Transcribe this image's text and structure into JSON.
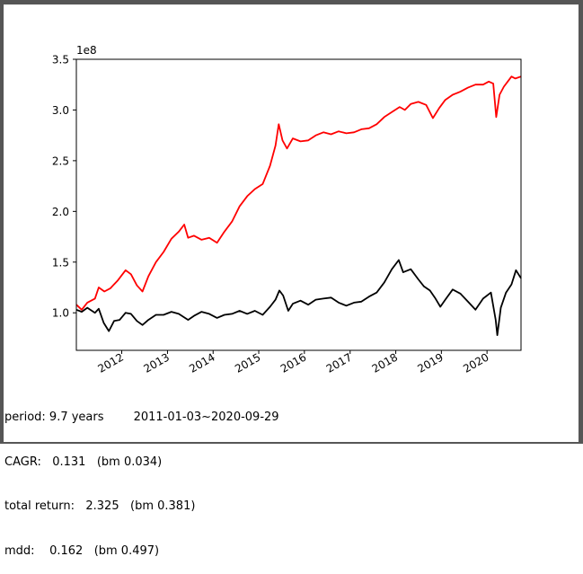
{
  "chart_data": {
    "type": "line",
    "title": "",
    "xlabel": "",
    "ylabel": "",
    "y_offset_label": "1e8",
    "xlim": [
      "2011-01-03",
      "2020-09-29"
    ],
    "ylim": [
      0.63,
      3.5
    ],
    "y_ticks": [
      1.0,
      1.5,
      2.0,
      2.5,
      3.0,
      3.5
    ],
    "y_tick_labels": [
      "1.0",
      "1.5",
      "2.0",
      "2.5",
      "3.0",
      "3.5"
    ],
    "x_ticks": [
      "2012-01-01",
      "2013-01-01",
      "2014-01-01",
      "2015-01-01",
      "2016-01-01",
      "2017-01-01",
      "2018-01-01",
      "2019-01-01",
      "2020-01-01"
    ],
    "x_tick_labels": [
      "2012",
      "2013",
      "2014",
      "2015",
      "2016",
      "2017",
      "2018",
      "2019",
      "2020"
    ],
    "grid": false,
    "legend": false,
    "series": [
      {
        "color": "#ff0000",
        "points": [
          [
            "2011-01-03",
            1.08
          ],
          [
            "2011-02-15",
            1.03
          ],
          [
            "2011-04-01",
            1.1
          ],
          [
            "2011-06-01",
            1.14
          ],
          [
            "2011-07-01",
            1.25
          ],
          [
            "2011-08-15",
            1.21
          ],
          [
            "2011-10-01",
            1.24
          ],
          [
            "2011-12-01",
            1.32
          ],
          [
            "2012-02-01",
            1.42
          ],
          [
            "2012-03-15",
            1.38
          ],
          [
            "2012-05-01",
            1.27
          ],
          [
            "2012-06-15",
            1.21
          ],
          [
            "2012-08-01",
            1.36
          ],
          [
            "2012-10-01",
            1.5
          ],
          [
            "2012-12-01",
            1.6
          ],
          [
            "2013-02-01",
            1.73
          ],
          [
            "2013-04-01",
            1.8
          ],
          [
            "2013-05-15",
            1.87
          ],
          [
            "2013-06-15",
            1.74
          ],
          [
            "2013-08-01",
            1.76
          ],
          [
            "2013-10-01",
            1.72
          ],
          [
            "2013-12-01",
            1.74
          ],
          [
            "2014-02-01",
            1.69
          ],
          [
            "2014-04-01",
            1.8
          ],
          [
            "2014-06-01",
            1.9
          ],
          [
            "2014-08-01",
            2.05
          ],
          [
            "2014-10-01",
            2.15
          ],
          [
            "2014-12-01",
            2.22
          ],
          [
            "2015-02-01",
            2.27
          ],
          [
            "2015-04-01",
            2.45
          ],
          [
            "2015-05-15",
            2.65
          ],
          [
            "2015-06-10",
            2.86
          ],
          [
            "2015-07-10",
            2.7
          ],
          [
            "2015-08-15",
            2.62
          ],
          [
            "2015-10-01",
            2.72
          ],
          [
            "2015-12-01",
            2.69
          ],
          [
            "2016-02-01",
            2.7
          ],
          [
            "2016-04-01",
            2.75
          ],
          [
            "2016-06-01",
            2.78
          ],
          [
            "2016-08-01",
            2.76
          ],
          [
            "2016-10-01",
            2.79
          ],
          [
            "2016-12-01",
            2.77
          ],
          [
            "2017-02-01",
            2.78
          ],
          [
            "2017-04-01",
            2.81
          ],
          [
            "2017-06-01",
            2.82
          ],
          [
            "2017-08-01",
            2.86
          ],
          [
            "2017-10-01",
            2.93
          ],
          [
            "2017-12-01",
            2.98
          ],
          [
            "2018-02-01",
            3.03
          ],
          [
            "2018-03-15",
            3.0
          ],
          [
            "2018-05-01",
            3.06
          ],
          [
            "2018-07-01",
            3.08
          ],
          [
            "2018-09-01",
            3.05
          ],
          [
            "2018-10-25",
            2.92
          ],
          [
            "2018-12-15",
            3.02
          ],
          [
            "2019-02-01",
            3.1
          ],
          [
            "2019-04-01",
            3.15
          ],
          [
            "2019-06-01",
            3.18
          ],
          [
            "2019-08-01",
            3.22
          ],
          [
            "2019-10-01",
            3.25
          ],
          [
            "2019-12-01",
            3.25
          ],
          [
            "2020-01-15",
            3.28
          ],
          [
            "2020-02-20",
            3.26
          ],
          [
            "2020-03-15",
            2.93
          ],
          [
            "2020-04-10",
            3.15
          ],
          [
            "2020-05-15",
            3.23
          ],
          [
            "2020-06-15",
            3.28
          ],
          [
            "2020-07-15",
            3.33
          ],
          [
            "2020-08-15",
            3.31
          ],
          [
            "2020-09-29",
            3.33
          ]
        ]
      },
      {
        "color": "#000000",
        "points": [
          [
            "2011-01-03",
            1.03
          ],
          [
            "2011-02-15",
            1.01
          ],
          [
            "2011-04-01",
            1.05
          ],
          [
            "2011-06-01",
            1.0
          ],
          [
            "2011-07-01",
            1.04
          ],
          [
            "2011-08-10",
            0.9
          ],
          [
            "2011-09-20",
            0.82
          ],
          [
            "2011-11-01",
            0.92
          ],
          [
            "2011-12-15",
            0.93
          ],
          [
            "2012-02-01",
            1.0
          ],
          [
            "2012-03-15",
            0.99
          ],
          [
            "2012-05-01",
            0.92
          ],
          [
            "2012-06-15",
            0.88
          ],
          [
            "2012-08-01",
            0.93
          ],
          [
            "2012-10-01",
            0.98
          ],
          [
            "2012-12-01",
            0.98
          ],
          [
            "2013-02-01",
            1.01
          ],
          [
            "2013-04-01",
            0.99
          ],
          [
            "2013-06-15",
            0.93
          ],
          [
            "2013-08-01",
            0.97
          ],
          [
            "2013-10-01",
            1.01
          ],
          [
            "2013-12-01",
            0.99
          ],
          [
            "2014-02-01",
            0.95
          ],
          [
            "2014-04-01",
            0.98
          ],
          [
            "2014-06-01",
            0.99
          ],
          [
            "2014-08-01",
            1.02
          ],
          [
            "2014-10-01",
            0.99
          ],
          [
            "2014-12-01",
            1.02
          ],
          [
            "2015-02-01",
            0.98
          ],
          [
            "2015-04-01",
            1.06
          ],
          [
            "2015-05-15",
            1.13
          ],
          [
            "2015-06-15",
            1.22
          ],
          [
            "2015-07-15",
            1.17
          ],
          [
            "2015-08-25",
            1.02
          ],
          [
            "2015-10-01",
            1.09
          ],
          [
            "2015-12-01",
            1.12
          ],
          [
            "2016-02-01",
            1.08
          ],
          [
            "2016-04-01",
            1.13
          ],
          [
            "2016-06-01",
            1.14
          ],
          [
            "2016-08-01",
            1.15
          ],
          [
            "2016-10-01",
            1.1
          ],
          [
            "2016-12-01",
            1.07
          ],
          [
            "2017-02-01",
            1.1
          ],
          [
            "2017-04-01",
            1.11
          ],
          [
            "2017-06-01",
            1.16
          ],
          [
            "2017-08-01",
            1.2
          ],
          [
            "2017-10-01",
            1.3
          ],
          [
            "2017-12-01",
            1.43
          ],
          [
            "2018-01-25",
            1.52
          ],
          [
            "2018-03-01",
            1.4
          ],
          [
            "2018-05-01",
            1.43
          ],
          [
            "2018-07-01",
            1.33
          ],
          [
            "2018-08-15",
            1.26
          ],
          [
            "2018-10-01",
            1.22
          ],
          [
            "2018-11-15",
            1.14
          ],
          [
            "2018-12-24",
            1.06
          ],
          [
            "2019-02-01",
            1.13
          ],
          [
            "2019-04-01",
            1.23
          ],
          [
            "2019-06-01",
            1.19
          ],
          [
            "2019-08-01",
            1.11
          ],
          [
            "2019-10-01",
            1.03
          ],
          [
            "2019-12-01",
            1.14
          ],
          [
            "2020-02-01",
            1.2
          ],
          [
            "2020-03-10",
            0.93
          ],
          [
            "2020-03-23",
            0.78
          ],
          [
            "2020-04-20",
            1.05
          ],
          [
            "2020-06-01",
            1.2
          ],
          [
            "2020-07-15",
            1.28
          ],
          [
            "2020-08-20",
            1.42
          ],
          [
            "2020-09-29",
            1.34
          ]
        ]
      }
    ]
  },
  "stats": {
    "period": "period: 9.7 years        2011-01-03~2020-09-29",
    "cagr": "CAGR:   0.131   (bm 0.034)",
    "total_return": "total return:   2.325   (bm 0.381)",
    "mdd": "mdd:    0.162   (bm 0.497)"
  }
}
